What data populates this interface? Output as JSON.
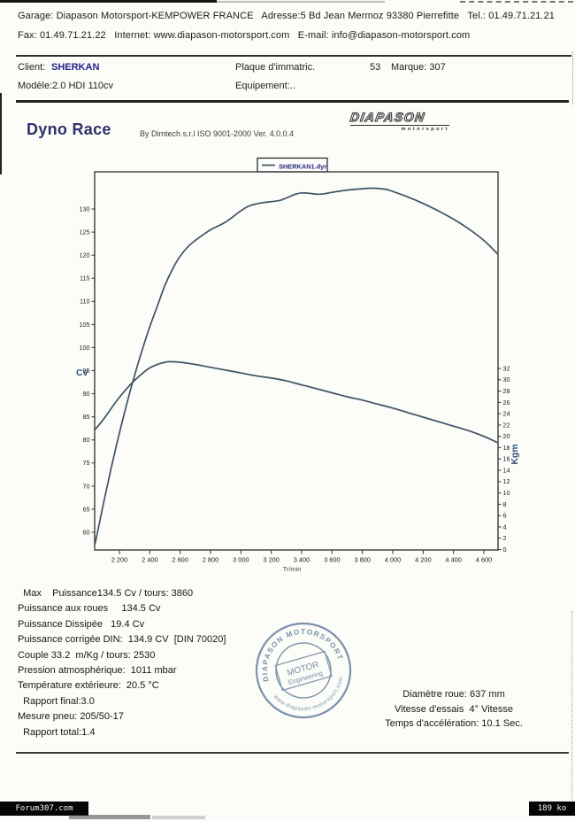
{
  "page": {
    "colors": {
      "navy_accent": "#22228f",
      "title_navy": "#30306b",
      "curve": "#3d5366",
      "axis_label_blue": "#2b4f7e",
      "stamp_blue": "#7189a3"
    }
  },
  "header": {
    "line1": "Garage: Diapason Motorsport-KEMPOWER FRANCE   Adresse:5 Bd Jean Mermoz 93380 Pierrefitte   Tel.: 01.49.71.21.21",
    "line2": "Fax: 01.49.71.21.22   Internet: www.diapason-motorsport.com   E-mail: info@diapason-motorsport.com"
  },
  "client": {
    "client_label": "Client:",
    "client_name": "SHERKAN",
    "model": "Modèle:2.0 HDI 110cv",
    "plate_label": "Plaque d'immatric.",
    "plate_value": "53",
    "brand": "Marque: 307",
    "equipment": "Equipement:.."
  },
  "report": {
    "title": "Dyno Race",
    "subtitle": "By Dimtech s.r.l  ISO 9001-2000  Ver. 4.0.0.4",
    "logo_text": "DIAPASON",
    "logo_sub": "motorsport"
  },
  "chart_data": {
    "type": "line",
    "legend": [
      "SHERKAN1.dyn"
    ],
    "line_color": "#3d5366",
    "xlabel": "Tr/min",
    "x_range": [
      2040,
      4690
    ],
    "x_ticks": [
      2200,
      2400,
      2600,
      2800,
      3000,
      3200,
      3400,
      3600,
      3800,
      4000,
      4200,
      4400,
      4600
    ],
    "x_tick_labels": [
      "2 200",
      "2 400",
      "2 600",
      "2 800",
      "3 000",
      "3 200",
      "3 400",
      "3 600",
      "3 800",
      "4 000",
      "4 200",
      "4 400",
      "4 600"
    ],
    "left_axis": {
      "label": "Cv",
      "ticks": [
        60,
        65,
        70,
        75,
        80,
        85,
        90,
        95,
        100,
        105,
        110,
        115,
        120,
        125,
        130
      ]
    },
    "right_axis": {
      "label": "Kgm",
      "ticks": [
        0,
        2,
        4,
        6,
        8,
        10,
        12,
        14,
        16,
        18,
        20,
        22,
        24,
        26,
        28,
        30,
        32
      ]
    },
    "series": [
      {
        "name": "Puissance (Cv)",
        "axis": "left",
        "points": [
          [
            2040,
            57.5
          ],
          [
            2100,
            67
          ],
          [
            2150,
            74.5
          ],
          [
            2200,
            81.5
          ],
          [
            2250,
            88
          ],
          [
            2300,
            94
          ],
          [
            2350,
            99.5
          ],
          [
            2400,
            104.5
          ],
          [
            2450,
            109
          ],
          [
            2500,
            113.5
          ],
          [
            2550,
            117
          ],
          [
            2600,
            119.8
          ],
          [
            2650,
            121.8
          ],
          [
            2700,
            123.2
          ],
          [
            2750,
            124.4
          ],
          [
            2800,
            125.5
          ],
          [
            2900,
            127.2
          ],
          [
            3000,
            129.6
          ],
          [
            3050,
            130.6
          ],
          [
            3100,
            131.1
          ],
          [
            3150,
            131.4
          ],
          [
            3250,
            131.8
          ],
          [
            3300,
            132.4
          ],
          [
            3350,
            133.1
          ],
          [
            3400,
            133.5
          ],
          [
            3450,
            133.4
          ],
          [
            3500,
            133.2
          ],
          [
            3550,
            133.3
          ],
          [
            3600,
            133.6
          ],
          [
            3700,
            134.1
          ],
          [
            3800,
            134.4
          ],
          [
            3860,
            134.5
          ],
          [
            3950,
            134.3
          ],
          [
            4000,
            133.8
          ],
          [
            4100,
            132.6
          ],
          [
            4200,
            131.2
          ],
          [
            4300,
            129.6
          ],
          [
            4400,
            127.8
          ],
          [
            4500,
            125.7
          ],
          [
            4600,
            123.2
          ],
          [
            4690,
            120.3
          ]
        ]
      },
      {
        "name": "Couple (Kgm)",
        "axis": "right",
        "points": [
          [
            2040,
            21.2
          ],
          [
            2100,
            23.2
          ],
          [
            2150,
            25.1
          ],
          [
            2200,
            26.9
          ],
          [
            2250,
            28.5
          ],
          [
            2300,
            29.9
          ],
          [
            2350,
            31.1
          ],
          [
            2400,
            32.1
          ],
          [
            2450,
            32.7
          ],
          [
            2500,
            33.1
          ],
          [
            2530,
            33.2
          ],
          [
            2600,
            33.1
          ],
          [
            2700,
            32.7
          ],
          [
            2800,
            32.2
          ],
          [
            2900,
            31.7
          ],
          [
            3000,
            31.2
          ],
          [
            3100,
            30.7
          ],
          [
            3200,
            30.3
          ],
          [
            3300,
            29.8
          ],
          [
            3400,
            29.1
          ],
          [
            3500,
            28.4
          ],
          [
            3600,
            27.7
          ],
          [
            3700,
            27.0
          ],
          [
            3800,
            26.4
          ],
          [
            3900,
            25.7
          ],
          [
            4000,
            25.0
          ],
          [
            4100,
            24.2
          ],
          [
            4200,
            23.4
          ],
          [
            4300,
            22.6
          ],
          [
            4400,
            21.8
          ],
          [
            4500,
            21.0
          ],
          [
            4600,
            20.0
          ],
          [
            4690,
            18.9
          ]
        ]
      }
    ],
    "max_power": {
      "value_cv": 134.5,
      "rpm": 3860
    },
    "max_torque": {
      "value_mkg": 33.2,
      "rpm": 2530
    }
  },
  "results": {
    "lines": [
      "  Max    Puissance134.5 Cv / tours: 3860",
      "Puissance aux roues     134.5 Cv",
      "Puissance Dissipée   19.4 Cv",
      "Puissance corrigée DIN:  134.9 CV  [DIN 70020]",
      "Couple 33.2  m/Kg / tours: 2530",
      "Pression atmosphérique:  1011 mbar",
      "Température extérieure:  20.5 °C",
      "  Rapport final:3.0",
      "Mesure pneu: 205/50-17",
      "  Rapport total:1.4"
    ]
  },
  "stamp": {
    "top": "DIAPASON MOTORSPORT",
    "bottom": "www.diapason-motorsport.com",
    "center1": "MOTOR",
    "center2": "Engineering"
  },
  "test_info": {
    "lines": [
      "Diamètre roue: 637 mm",
      "Vitesse d'essais  4° Vitesse",
      "Temps d'accélération: 10.1 Sec."
    ]
  },
  "footer": {
    "left": "Forum307.com",
    "right": "189 ko"
  }
}
